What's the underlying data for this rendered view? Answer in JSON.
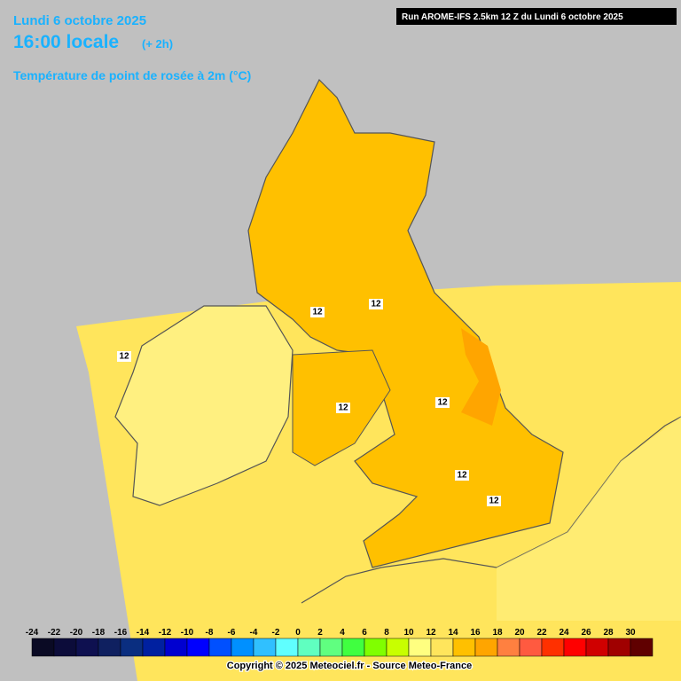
{
  "header": {
    "date": "Lundi 6 octobre 2025",
    "time": "16:00 locale",
    "offset": "(+ 2h)",
    "parameter": "Température de point de rosée à 2m (°C)",
    "run": "Run AROME-IFS 2.5km 12 Z du Lundi 6 octobre 2025"
  },
  "contour_labels": [
    "12",
    "12",
    "12",
    "12",
    "12",
    "12",
    "12"
  ],
  "legend": {
    "ticks": [
      -24,
      -22,
      -20,
      -18,
      -16,
      -14,
      -12,
      -10,
      -8,
      -6,
      -4,
      -2,
      0,
      2,
      4,
      6,
      8,
      10,
      12,
      14,
      16,
      18,
      20,
      22,
      24,
      26,
      28,
      30
    ],
    "colors": [
      "#0a0a24",
      "#0c0c3a",
      "#0e1050",
      "#0f2060",
      "#0a2e80",
      "#0020a0",
      "#0000d0",
      "#0000ff",
      "#0050ff",
      "#0090ff",
      "#30c0ff",
      "#60ffff",
      "#60ffc0",
      "#60ff80",
      "#40ff40",
      "#80ff00",
      "#c8ff00",
      "#ffff80",
      "#ffe55c",
      "#ffc000",
      "#ffa500",
      "#ff8040",
      "#ff5a40",
      "#ff3000",
      "#ff0000",
      "#d00000",
      "#a00000",
      "#600000"
    ]
  },
  "footer": {
    "copyright": "Copyright © 2025 Meteociel.fr - Source Meteo-France"
  }
}
